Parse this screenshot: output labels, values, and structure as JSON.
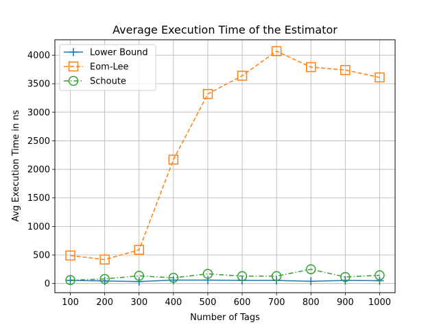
{
  "chart_data": {
    "type": "line",
    "title": "Average Execution Time of the Estimator",
    "xlabel": "Number of Tags",
    "ylabel": "Avg Execution Time in ns",
    "x": [
      100,
      200,
      300,
      400,
      500,
      600,
      700,
      800,
      900,
      1000
    ],
    "xticks": [
      "100",
      "200",
      "300",
      "400",
      "500",
      "600",
      "700",
      "800",
      "900",
      "1000"
    ],
    "yticks": [
      "0",
      "500",
      "1000",
      "1500",
      "2000",
      "2500",
      "3000",
      "3500",
      "4000"
    ],
    "xlim": [
      55,
      1045
    ],
    "ylim": [
      -160,
      4270
    ],
    "grid": true,
    "legend_position": "top-left",
    "series": [
      {
        "name": "Lower Bound",
        "color": "#1f77b4",
        "line_style": "solid",
        "marker": "plus",
        "values": [
          55,
          45,
          35,
          60,
          60,
          55,
          55,
          40,
          55,
          50
        ]
      },
      {
        "name": "Eom-Lee",
        "color": "#ff7f0e",
        "line_style": "dashed",
        "marker": "square",
        "values": [
          490,
          420,
          590,
          2170,
          3320,
          3640,
          4070,
          3790,
          3740,
          3610
        ]
      },
      {
        "name": "Schoute",
        "color": "#2ca02c",
        "line_style": "dashdot",
        "marker": "circle",
        "values": [
          60,
          80,
          135,
          100,
          170,
          130,
          130,
          250,
          115,
          145
        ]
      }
    ]
  }
}
